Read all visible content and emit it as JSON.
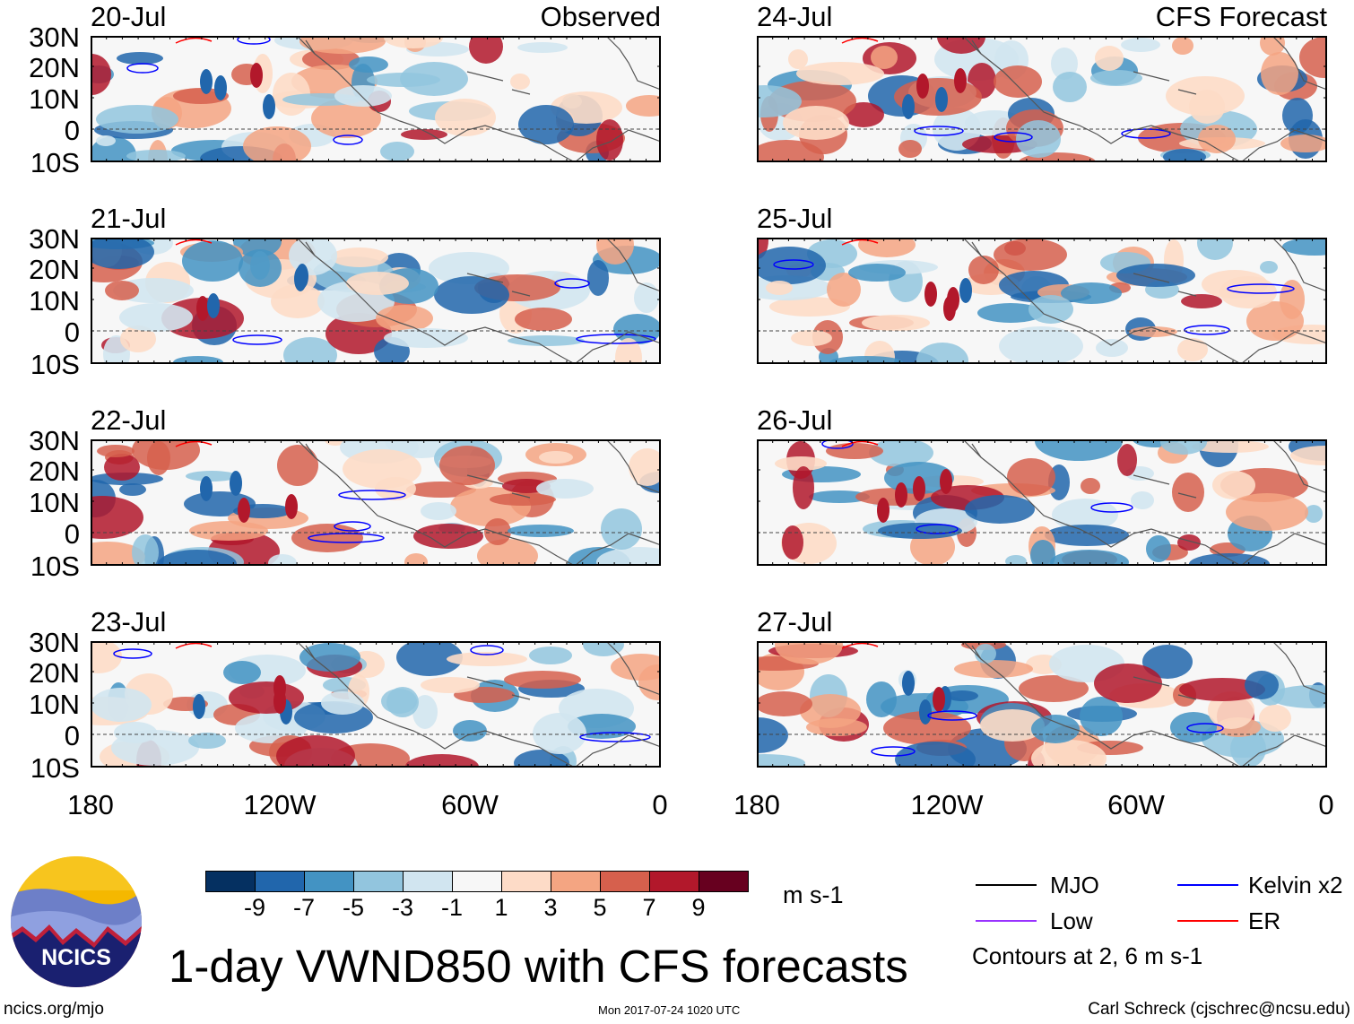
{
  "observed_title": "Observed",
  "forecast_title": "CFS Forecast",
  "observed_dates": [
    "20-Jul",
    "21-Jul",
    "22-Jul",
    "23-Jul"
  ],
  "forecast_dates": [
    "24-Jul",
    "25-Jul",
    "26-Jul",
    "27-Jul"
  ],
  "lat_labels": [
    "30N",
    "20N",
    "10N",
    "0",
    "10S"
  ],
  "lon_labels": [
    "180",
    "120W",
    "60W",
    "0"
  ],
  "colorbar": {
    "labels": [
      "-9",
      "-7",
      "-5",
      "-3",
      "-1",
      "1",
      "3",
      "5",
      "7",
      "9"
    ],
    "colors": [
      "#053061",
      "#2166ac",
      "#4393c3",
      "#92c5de",
      "#d1e5f0",
      "#f7f7f7",
      "#fddbc7",
      "#f4a582",
      "#d6604d",
      "#b2182b",
      "#67001f"
    ],
    "units": "m s-1"
  },
  "legend": {
    "items": [
      {
        "label": "MJO",
        "color": "#000000"
      },
      {
        "label": "Kelvin x2",
        "color": "#0000ff"
      },
      {
        "label": "Low",
        "color": "#9933ff"
      },
      {
        "label": "ER",
        "color": "#ff0000"
      }
    ],
    "contours_note": "Contours at 2, 6 m s-1"
  },
  "main_title": "1-day VWND850 with CFS forecasts",
  "logo_text": "NCICS",
  "site": "ncics.org/mjo",
  "timestamp": "Mon 2017-07-24 1020 UTC",
  "credit": "Carl Schreck (cjschrec@ncsu.edu)"
}
